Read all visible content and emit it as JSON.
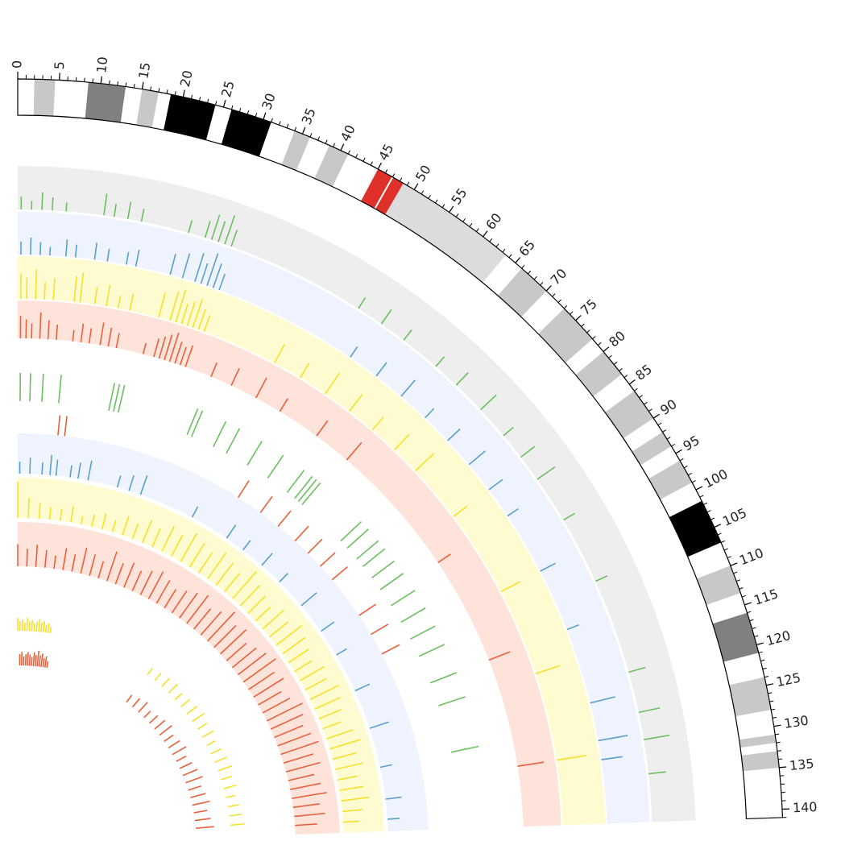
{
  "chart_data": {
    "type": "circos",
    "xlim": [
      0,
      141
    ],
    "xticks": [
      0,
      5,
      10,
      15,
      20,
      25,
      30,
      35,
      40,
      45,
      50,
      55,
      60,
      65,
      70,
      75,
      80,
      85,
      90,
      95,
      100,
      105,
      110,
      115,
      120,
      125,
      130,
      135,
      140
    ],
    "bands": [
      {
        "start": 2,
        "end": 4.5,
        "color": "#c8c8c8"
      },
      {
        "start": 8.5,
        "end": 13,
        "color": "#808080"
      },
      {
        "start": 15,
        "end": 17,
        "color": "#c8c8c8"
      },
      {
        "start": 18.5,
        "end": 24,
        "color": "#000000"
      },
      {
        "start": 26,
        "end": 31,
        "color": "#000000"
      },
      {
        "start": 34,
        "end": 36,
        "color": "#c8c8c8"
      },
      {
        "start": 38.5,
        "end": 41,
        "color": "#c8c8c8"
      },
      {
        "start": 45,
        "end": 46.9,
        "color": "#e0302a"
      },
      {
        "start": 47.1,
        "end": 48.5,
        "color": "#e0302a"
      },
      {
        "start": 48.5,
        "end": 63.5,
        "color": "#dcdcdc"
      },
      {
        "start": 66,
        "end": 70,
        "color": "#c8c8c8"
      },
      {
        "start": 73,
        "end": 78,
        "color": "#c8c8c8"
      },
      {
        "start": 80,
        "end": 83.5,
        "color": "#c8c8c8"
      },
      {
        "start": 86,
        "end": 90,
        "color": "#c8c8c8"
      },
      {
        "start": 92,
        "end": 94,
        "color": "#c8c8c8"
      },
      {
        "start": 96,
        "end": 99,
        "color": "#c8c8c8"
      },
      {
        "start": 101.5,
        "end": 107,
        "color": "#000000"
      },
      {
        "start": 110,
        "end": 113.5,
        "color": "#c8c8c8"
      },
      {
        "start": 116,
        "end": 121,
        "color": "#808080"
      },
      {
        "start": 124,
        "end": 128,
        "color": "#c8c8c8"
      },
      {
        "start": 131,
        "end": 132,
        "color": "#c8c8c8"
      },
      {
        "start": 133,
        "end": 135,
        "color": "#c8c8c8"
      }
    ],
    "tracks": [
      {
        "color": "#6abf5e",
        "band_color": "#eeeeee",
        "x": [
          0.5,
          2,
          3.5,
          5,
          7,
          12.5,
          14,
          16,
          18,
          25,
          27.5,
          28.5,
          29.5,
          30.5,
          31.5,
          52,
          56,
          60,
          66,
          70,
          75,
          80,
          84,
          88,
          95,
          105,
          119,
          125,
          129,
          134
        ],
        "values": [
          0.3,
          0.2,
          0.4,
          0.3,
          0.2,
          0.5,
          0.3,
          0.4,
          0.3,
          0.3,
          0.4,
          0.6,
          0.5,
          0.7,
          0.4,
          0.3,
          0.4,
          0.3,
          0.3,
          0.4,
          0.5,
          0.3,
          0.4,
          0.5,
          0.3,
          0.3,
          0.4,
          0.5,
          0.6,
          0.4
        ]
      },
      {
        "color": "#5aa0c8",
        "band_color": "#eef3fd",
        "x": [
          0.5,
          2,
          3.5,
          5,
          7.5,
          9,
          12,
          14,
          17,
          18.5,
          24,
          26,
          28,
          29,
          30,
          31,
          32,
          55,
          60,
          65,
          70,
          75,
          80,
          85,
          90,
          100,
          110,
          122,
          128,
          131
        ],
        "values": [
          0.3,
          0.4,
          0.3,
          0.2,
          0.4,
          0.3,
          0.4,
          0.3,
          0.3,
          0.4,
          0.5,
          0.6,
          0.7,
          0.5,
          0.8,
          0.6,
          0.4,
          0.3,
          0.4,
          0.5,
          0.3,
          0.4,
          0.5,
          0.4,
          0.3,
          0.4,
          0.3,
          0.6,
          0.7,
          0.5
        ]
      },
      {
        "color": "#f5e12a",
        "band_color": "#fffbd0",
        "x": [
          0.5,
          1.5,
          3,
          4.5,
          6,
          9.5,
          10.5,
          13,
          15,
          17,
          19,
          24,
          26,
          27,
          28,
          29,
          30,
          31,
          32,
          45,
          50,
          55,
          60,
          65,
          70,
          75,
          85,
          100,
          115,
          130
        ],
        "values": [
          0.6,
          0.5,
          0.7,
          0.4,
          0.5,
          0.6,
          0.7,
          0.4,
          0.5,
          0.3,
          0.4,
          0.6,
          0.7,
          0.8,
          0.5,
          0.6,
          0.7,
          0.5,
          0.4,
          0.5,
          0.4,
          0.6,
          0.5,
          0.4,
          0.5,
          0.6,
          0.4,
          0.5,
          0.6,
          0.7
        ]
      },
      {
        "color": "#e8603c",
        "band_color": "#fde3d9",
        "x": [
          0.5,
          1.5,
          2.5,
          4,
          5.5,
          7,
          10,
          11.5,
          13,
          15,
          16.5,
          18,
          23,
          25,
          26,
          27,
          28,
          29,
          30,
          31,
          36,
          40,
          45,
          50,
          58,
          65,
          90,
          110,
          130
        ],
        "values": [
          0.6,
          0.5,
          0.4,
          0.7,
          0.5,
          0.4,
          0.3,
          0.5,
          0.4,
          0.6,
          0.5,
          0.4,
          0.3,
          0.5,
          0.6,
          0.7,
          0.8,
          0.6,
          0.5,
          0.6,
          0.4,
          0.5,
          0.6,
          0.4,
          0.5,
          0.6,
          0.4,
          0.6,
          0.7
        ]
      },
      {
        "color": "#6abf5e",
        "x": [
          0.5,
          2.5,
          5,
          8.5,
          19,
          20,
          21,
          36,
          37,
          42,
          45,
          50,
          55,
          60,
          62,
          63,
          64,
          75,
          77,
          80,
          82,
          85,
          88,
          92,
          96,
          100,
          104,
          110,
          115,
          125
        ],
        "values": [
          1,
          1,
          1,
          1,
          1,
          1,
          1,
          1,
          1,
          1,
          1,
          1,
          1,
          1,
          1,
          1,
          1,
          1,
          1,
          1,
          1,
          1,
          1,
          1,
          1,
          1,
          1,
          1,
          1,
          1
        ]
      },
      {
        "color": "#e8603c",
        "x": [
          9,
          10.5,
          52,
          58,
          63,
          68,
          72,
          76,
          80,
          90,
          95,
          100
        ],
        "values": [
          1,
          1,
          1,
          1,
          1,
          1,
          1,
          1,
          1,
          1,
          1,
          1
        ]
      },
      {
        "color": "#5aa0c8",
        "band_color": "#eef3fd",
        "x": [
          0.5,
          3,
          6,
          8,
          9.5,
          13,
          15,
          17.5,
          25,
          28,
          31,
          45,
          55,
          60,
          66,
          72,
          80,
          88,
          95,
          105,
          115,
          125,
          133,
          138
        ],
        "values": [
          0.3,
          0.4,
          0.3,
          0.5,
          0.4,
          0.3,
          0.4,
          0.5,
          0.3,
          0.4,
          0.5,
          0.3,
          0.4,
          0.3,
          0.4,
          0.3,
          0.5,
          0.4,
          0.3,
          0.4,
          0.5,
          0.3,
          0.4,
          0.3
        ]
      },
      {
        "color": "#f5e12a",
        "band_color": "#fffbd0",
        "x": [
          0,
          3,
          6,
          9,
          12,
          15,
          18,
          21,
          24,
          27,
          30,
          33,
          36,
          39,
          42,
          45,
          48,
          51,
          54,
          57,
          60,
          63,
          66,
          69,
          72,
          75,
          78,
          81,
          84,
          87,
          90,
          93,
          96,
          99,
          102,
          105,
          108,
          111,
          114,
          117,
          120,
          123,
          126,
          129,
          132,
          135,
          138
        ],
        "values": [
          0.9,
          0.5,
          0.4,
          0.3,
          0.3,
          0.4,
          0.2,
          0.3,
          0.4,
          0.3,
          0.5,
          0.4,
          0.6,
          0.5,
          0.7,
          0.6,
          0.8,
          0.7,
          0.6,
          0.8,
          0.7,
          0.6,
          0.9,
          0.7,
          0.6,
          0.5,
          0.7,
          0.6,
          0.8,
          0.7,
          0.6,
          0.5,
          0.7,
          0.6,
          0.8,
          0.7,
          0.6,
          0.5,
          0.7,
          0.8,
          0.6,
          0.7,
          0.5,
          0.6,
          0.7,
          0.5,
          0.4
        ]
      },
      {
        "color": "#e8603c",
        "band_color": "#fde3d9",
        "x": [
          0,
          3,
          6,
          9,
          12,
          15,
          18,
          21,
          24,
          27,
          30,
          33,
          36,
          39,
          42,
          45,
          48,
          51,
          54,
          57,
          60,
          63,
          66,
          69,
          72,
          75,
          78,
          81,
          84,
          87,
          90,
          93,
          96,
          99,
          102,
          105,
          108,
          111,
          114,
          117,
          120,
          123,
          126,
          129,
          132,
          135,
          138
        ],
        "values": [
          0.5,
          0.4,
          0.5,
          0.4,
          0.3,
          0.5,
          0.4,
          0.6,
          0.5,
          0.4,
          0.7,
          0.5,
          0.6,
          0.5,
          0.6,
          0.7,
          0.6,
          0.5,
          0.6,
          0.7,
          0.8,
          0.6,
          0.7,
          0.9,
          0.7,
          0.8,
          0.6,
          0.7,
          0.8,
          0.9,
          0.7,
          0.8,
          0.6,
          0.7,
          0.9,
          0.8,
          0.7,
          0.8,
          0.9,
          0.7,
          0.8,
          0.6,
          0.7,
          0.8,
          0.6,
          0.7,
          0.5
        ]
      },
      {
        "color": "#f5e12a",
        "x": [
          0,
          1,
          2,
          3,
          4,
          5,
          6,
          7,
          8,
          9,
          10,
          11,
          12,
          13,
          14,
          60,
          64,
          68,
          72,
          76,
          80,
          84,
          88,
          92,
          96,
          100,
          104,
          108,
          112,
          116,
          120,
          124,
          128,
          132,
          136
        ],
        "values": [
          0.8,
          0.6,
          0.7,
          0.5,
          0.8,
          0.6,
          0.7,
          0.5,
          0.6,
          0.8,
          0.6,
          0.7,
          0.5,
          0.6,
          0.4,
          0.5,
          0.6,
          0.7,
          0.8,
          0.6,
          0.7,
          0.8,
          0.9,
          0.7,
          0.8,
          0.6,
          0.7,
          0.8,
          0.9,
          0.7,
          0.8,
          0.6,
          0.7,
          0.8,
          0.9
        ]
      },
      {
        "color": "#e8603c",
        "x": [
          1,
          2,
          3,
          4,
          5,
          6,
          7,
          8,
          9,
          10,
          11,
          12,
          13,
          14,
          15,
          60,
          64,
          68,
          72,
          76,
          80,
          84,
          88,
          92,
          96,
          100,
          104,
          108,
          112,
          116,
          120,
          124,
          128,
          132,
          136
        ],
        "values": [
          0.5,
          0.6,
          0.4,
          0.5,
          0.6,
          0.5,
          0.4,
          0.6,
          0.5,
          0.7,
          0.5,
          0.6,
          0.4,
          0.5,
          0.3,
          0.4,
          0.5,
          0.6,
          0.4,
          0.5,
          0.6,
          0.7,
          0.5,
          0.6,
          0.7,
          0.5,
          0.6,
          0.7,
          0.8,
          0.6,
          0.7,
          0.8,
          0.6,
          0.7,
          0.8
        ]
      }
    ]
  }
}
